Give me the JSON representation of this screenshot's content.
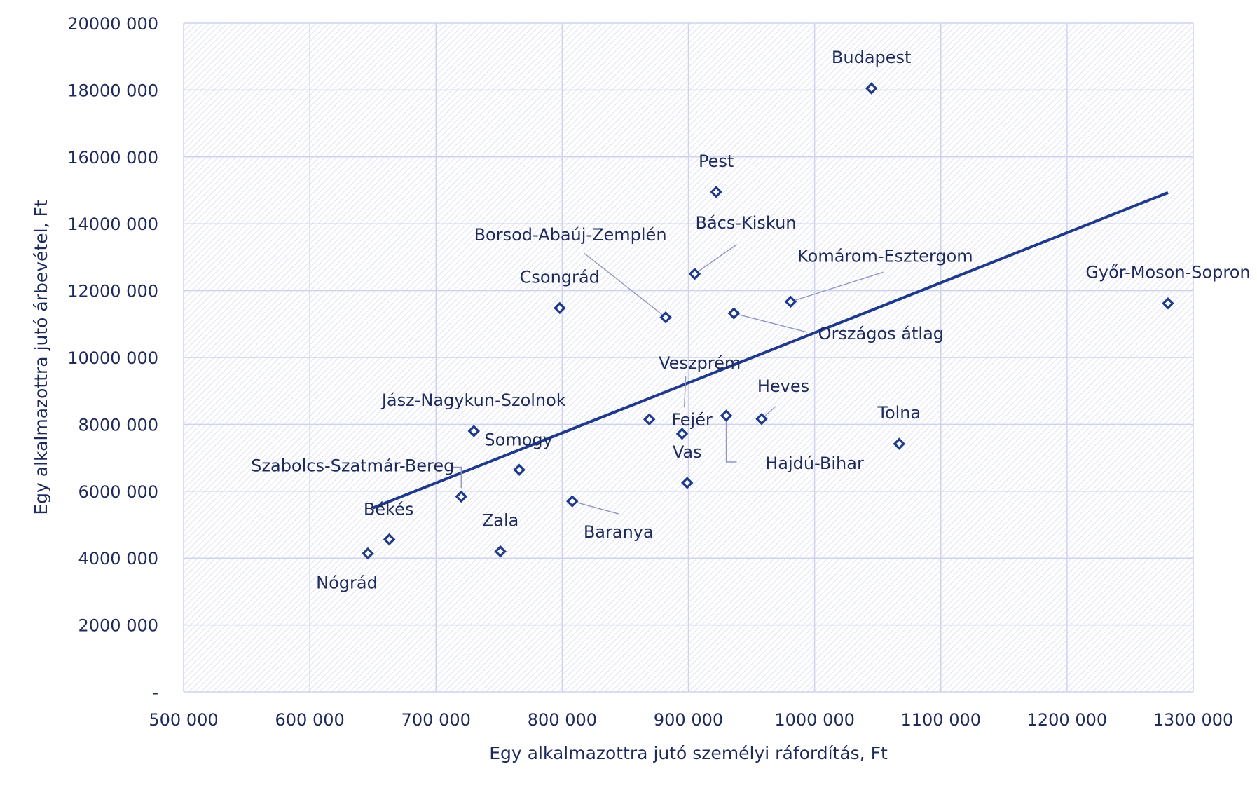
{
  "chart_data": {
    "type": "scatter",
    "title": "",
    "xlabel": "Egy alkalmazottra jutó személyi ráfordítás, Ft",
    "ylabel": "Egy alkalmazottra jutó árbevétel, Ft",
    "xlim": [
      500000,
      1300000
    ],
    "ylim": [
      0,
      20000000
    ],
    "x_ticks": [
      500000,
      600000,
      700000,
      800000,
      900000,
      1000000,
      1100000,
      1200000,
      1300000
    ],
    "y_ticks": [
      0,
      2000000,
      4000000,
      6000000,
      8000000,
      10000000,
      12000000,
      14000000,
      16000000,
      18000000,
      20000000
    ],
    "x_tick_labels": [
      "500 000",
      "600 000",
      "700 000",
      "800 000",
      "900 000",
      "1000 000",
      "1100 000",
      "1200 000",
      "1300 000"
    ],
    "y_tick_labels": [
      "-",
      "2000 000",
      "4000 000",
      "6000 000",
      "8000 000",
      "10000 000",
      "12000 000",
      "14000 000",
      "16000 000",
      "18000 000",
      "20000 000"
    ],
    "grid": true,
    "points": [
      {
        "name": "Budapest",
        "x": 1045000,
        "y": 18050000
      },
      {
        "name": "Pest",
        "x": 922000,
        "y": 14950000
      },
      {
        "name": "Bács-Kiskun",
        "x": 905000,
        "y": 12500000
      },
      {
        "name": "Borsod-Abaúj-Zemplén",
        "x": 882000,
        "y": 11200000
      },
      {
        "name": "Komárom-Esztergom",
        "x": 981000,
        "y": 11670000
      },
      {
        "name": "Győr-Moson-Sopron",
        "x": 1280000,
        "y": 11620000
      },
      {
        "name": "Csongrád",
        "x": 798000,
        "y": 11480000
      },
      {
        "name": "Országos átlag",
        "x": 936000,
        "y": 11320000
      },
      {
        "name": "Veszprém",
        "x": 869000,
        "y": 8150000
      },
      {
        "name": "Fejér",
        "x": 895000,
        "y": 7720000
      },
      {
        "name": "Heves",
        "x": 958000,
        "y": 8160000
      },
      {
        "name": "Hajdú-Bihar",
        "x": 930000,
        "y": 8260000
      },
      {
        "name": "Tolna",
        "x": 1067000,
        "y": 7420000
      },
      {
        "name": "Jász-Nagykun-Szolnok",
        "x": 730000,
        "y": 7800000
      },
      {
        "name": "Somogy",
        "x": 766000,
        "y": 6640000
      },
      {
        "name": "Vas",
        "x": 899000,
        "y": 6250000
      },
      {
        "name": "Szabolcs-Szatmár-Bereg",
        "x": 720000,
        "y": 5840000
      },
      {
        "name": "Baranya",
        "x": 808000,
        "y": 5700000
      },
      {
        "name": "Békés",
        "x": 663000,
        "y": 4560000
      },
      {
        "name": "Zala",
        "x": 751000,
        "y": 4200000
      },
      {
        "name": "Nógrád",
        "x": 646000,
        "y": 4140000
      }
    ],
    "trendline": {
      "type": "linear",
      "x": [
        650000,
        1280000
      ],
      "y": [
        5500000,
        14930000
      ]
    }
  }
}
